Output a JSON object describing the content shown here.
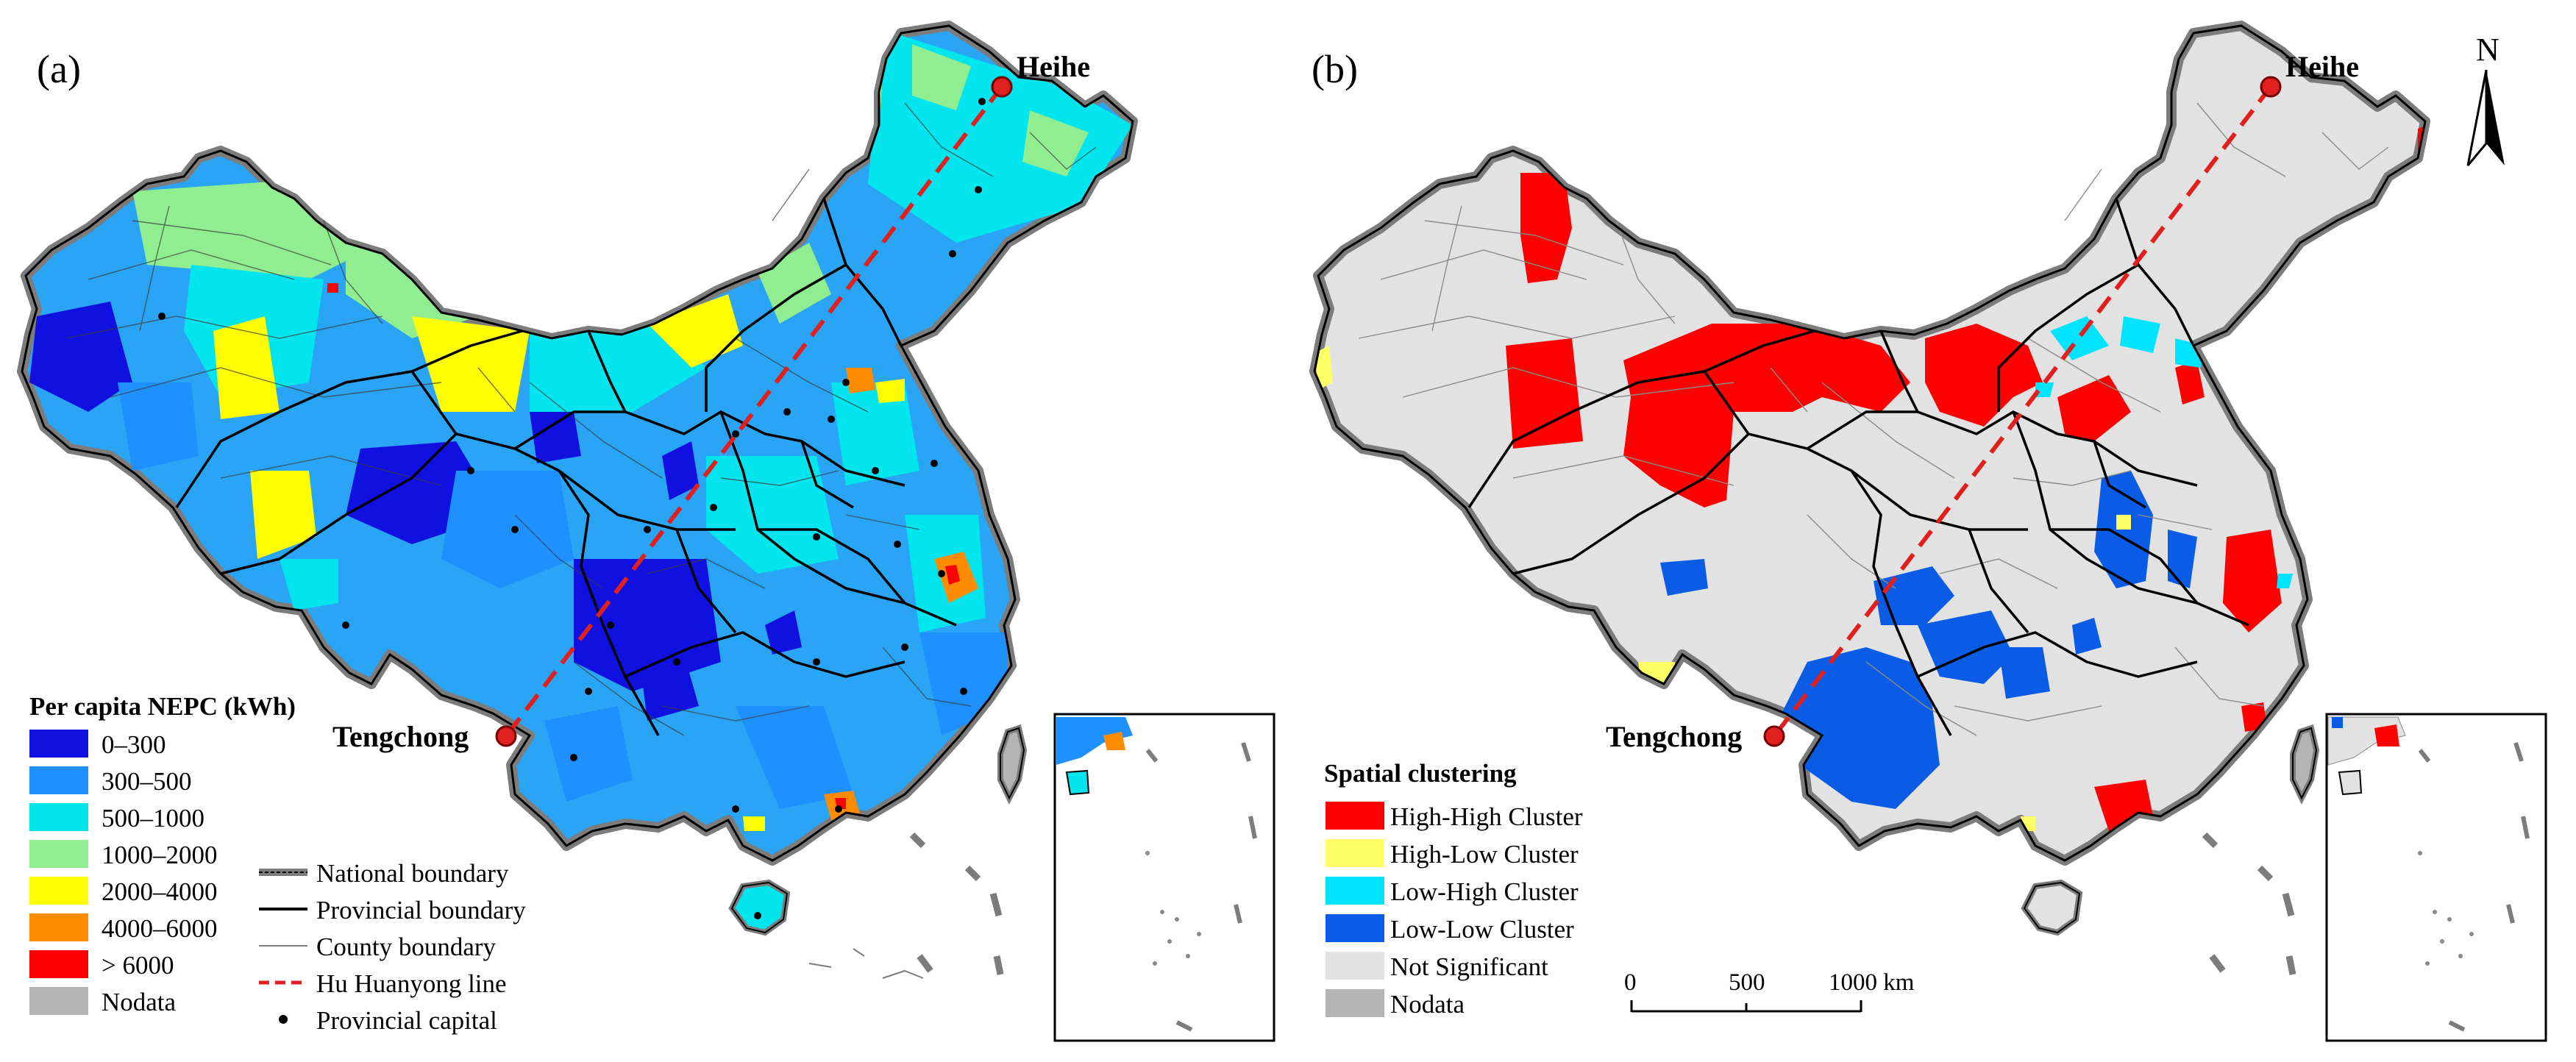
{
  "panels": {
    "a": {
      "label": "(a)",
      "legend": {
        "title": "Per capita NEPC (kWh)",
        "classes": [
          {
            "label": "0–300",
            "color": "#1010e0"
          },
          {
            "label": "300–500",
            "color": "#1e90ff"
          },
          {
            "label": "500–1000",
            "color": "#00e5ee"
          },
          {
            "label": "1000–2000",
            "color": "#90ee90"
          },
          {
            "label": "2000–4000",
            "color": "#ffff00"
          },
          {
            "label": "4000–6000",
            "color": "#ff8c00"
          },
          {
            "label": "> 6000",
            "color": "#ff0000"
          },
          {
            "label": "Nodata",
            "color": "#b4b4b4"
          }
        ]
      },
      "line_legend": {
        "national": "National boundary",
        "provincial": "Provincial boundary",
        "county": "County boundary",
        "hu_line": "Hu Huanyong line",
        "capital": "Provincial capital"
      }
    },
    "b": {
      "label": "(b)",
      "legend": {
        "title": "Spatial clustering",
        "classes": [
          {
            "label": "High-High Cluster",
            "color": "#ff0000"
          },
          {
            "label": "High-Low Cluster",
            "color": "#ffff66"
          },
          {
            "label": "Low-High Cluster",
            "color": "#00e5ff"
          },
          {
            "label": "Low-Low Cluster",
            "color": "#0a5ce6"
          },
          {
            "label": "Not Significant",
            "color": "#e2e2e2"
          },
          {
            "label": "Nodata",
            "color": "#b4b4b4"
          }
        ]
      },
      "scale_bar": {
        "ticks": [
          "0",
          "500",
          "1000 km"
        ]
      },
      "north": "N"
    }
  },
  "places": {
    "north_end": "Heihe",
    "south_end": "Tengchong"
  }
}
